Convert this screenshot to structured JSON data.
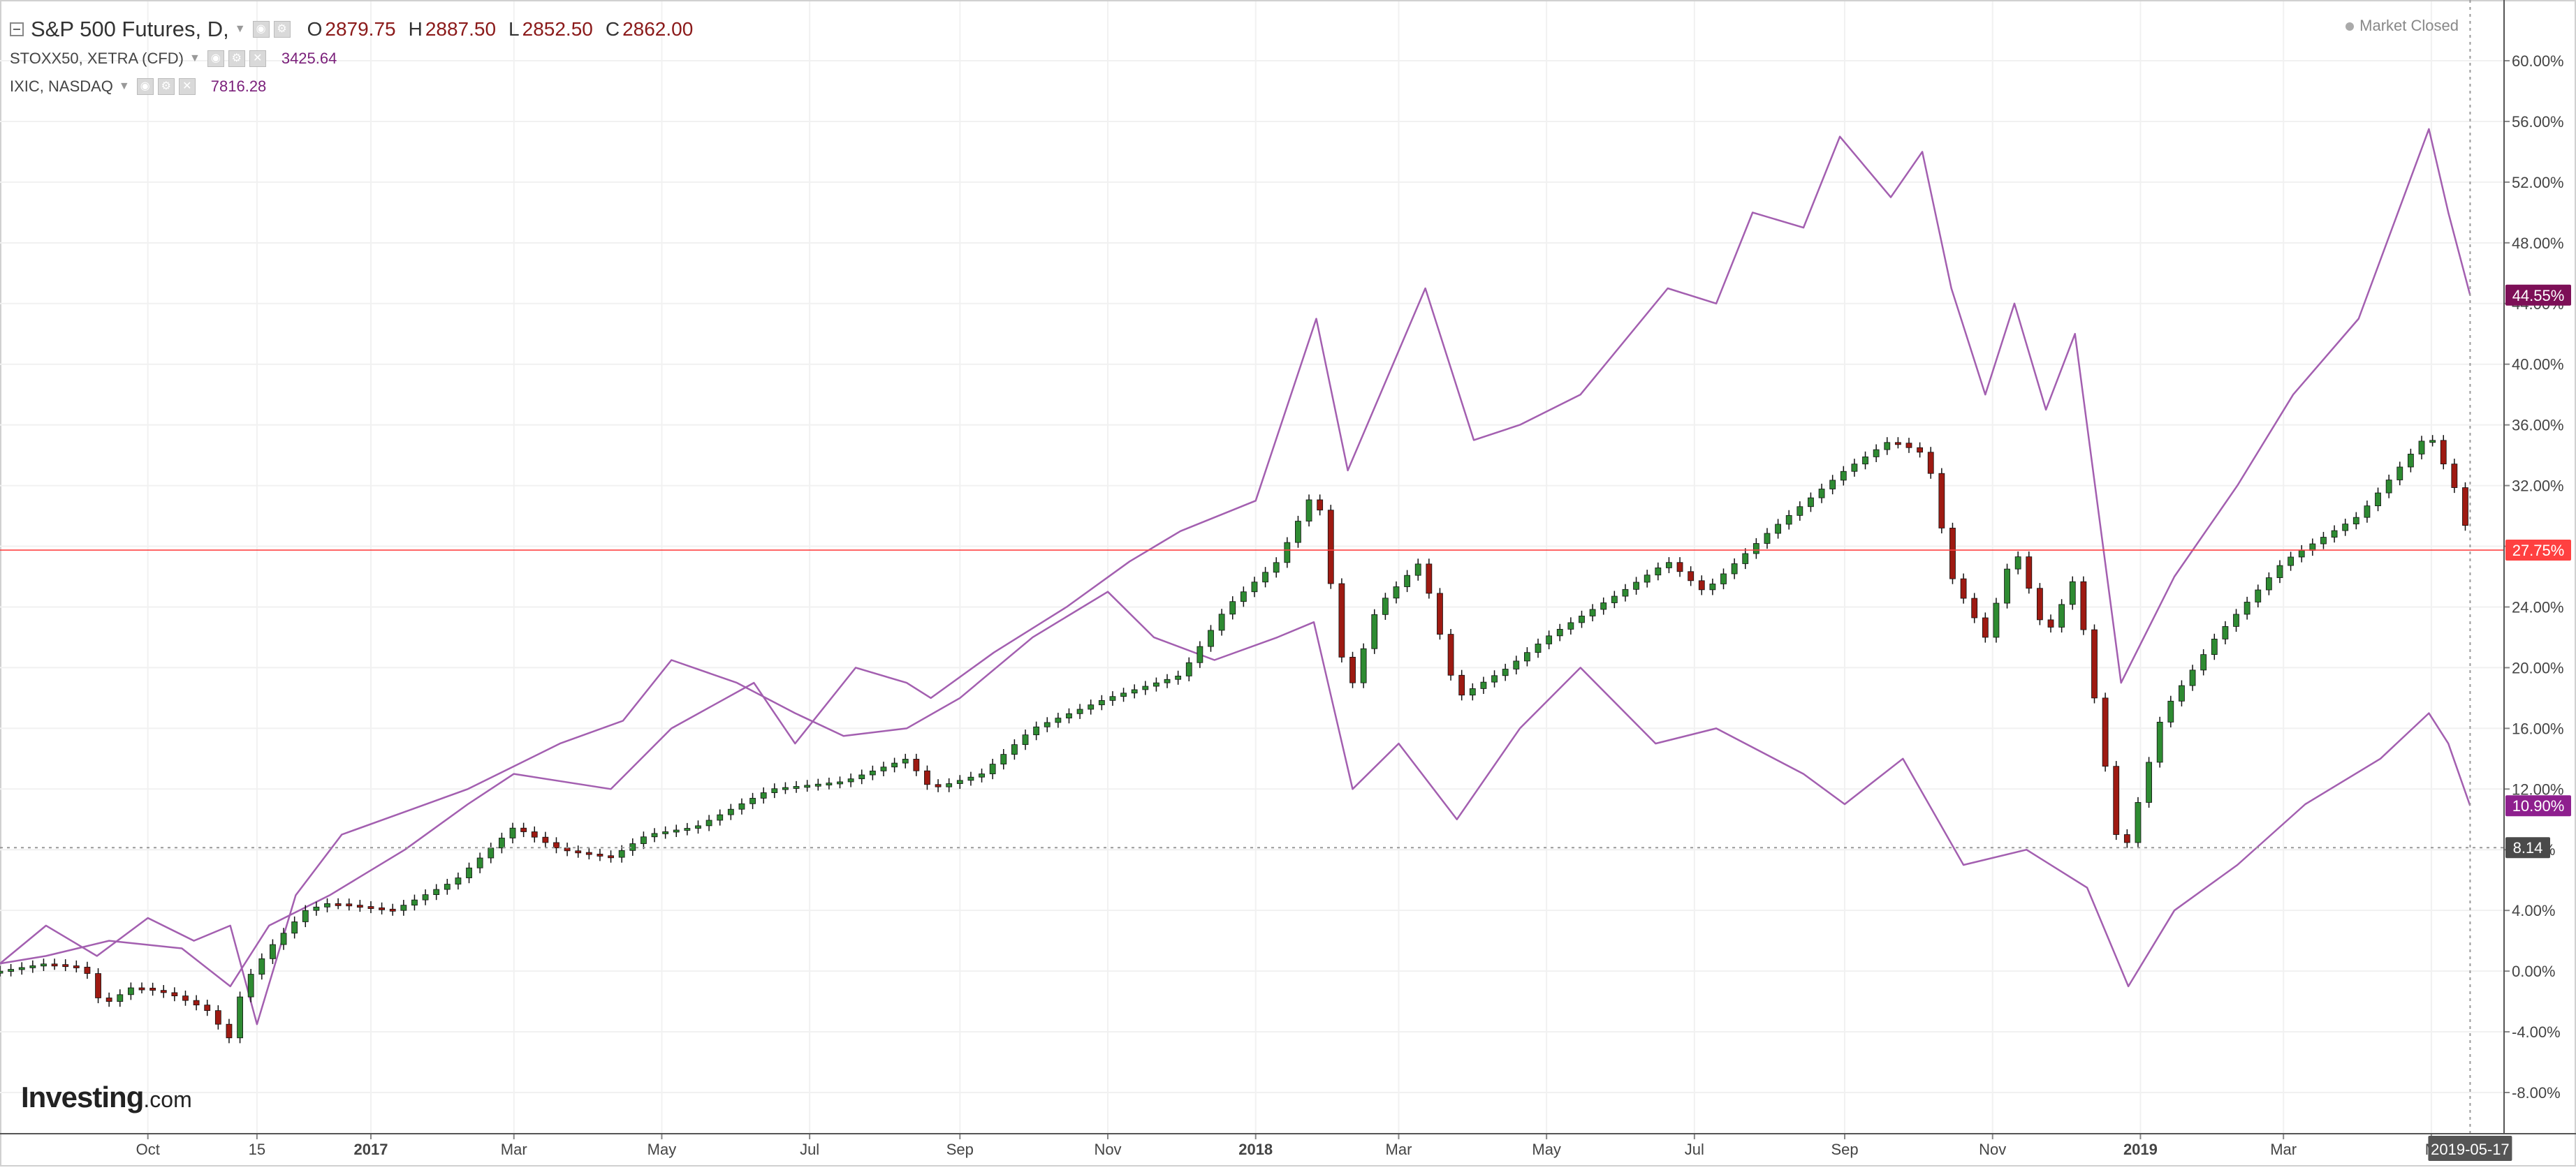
{
  "legend": {
    "main_title": "S&P 500 Futures, D,",
    "ohlc": {
      "o_label": "O",
      "o_value": "2879.75",
      "h_label": "H",
      "h_value": "2887.50",
      "l_label": "L",
      "l_value": "2852.50",
      "c_label": "C",
      "c_value": "2862.00"
    },
    "compare1_name": "STOXX50, XETRA (CFD)",
    "compare1_value": "3425.64",
    "compare2_name": "IXIC, NASDAQ",
    "compare2_value": "7816.28"
  },
  "status_text": "Market Closed",
  "logo_text": "Investing",
  "logo_suffix": ".com",
  "colors": {
    "up_candle": "#2e8b32",
    "down_candle": "#9e1a12",
    "compare_line": "#a35fb0",
    "price_line": "#ff4040",
    "nasdaq_badge": "#7d0f57",
    "stoxx_badge": "#8e1f8e",
    "crosshair_badge": "#4a4a4a",
    "date_badge": "#555555"
  },
  "icons": [
    "collapse-icon",
    "eye-icon",
    "gear-icon",
    "close-icon",
    "dropdown-caret-icon"
  ],
  "chart_data": {
    "type": "line",
    "ylabel_unit": "%",
    "y_range": [
      -10,
      62
    ],
    "y_ticks": [
      "60.00%",
      "56.00%",
      "52.00%",
      "48.00%",
      "44.00%",
      "40.00%",
      "36.00%",
      "32.00%",
      "28.00%",
      "24.00%",
      "20.00%",
      "16.00%",
      "12.00%",
      "8.00%",
      "4.00%",
      "0.00%",
      "-4.00%",
      "-8.00%"
    ],
    "x_tick_labels": [
      {
        "label": "Oct",
        "date": "2016-10-01"
      },
      {
        "label": "15",
        "date": "2016-11-15"
      },
      {
        "label": "2017",
        "date": "2017-01-01",
        "bold": true
      },
      {
        "label": "Mar",
        "date": "2017-03-01"
      },
      {
        "label": "May",
        "date": "2017-05-01"
      },
      {
        "label": "Jul",
        "date": "2017-07-01"
      },
      {
        "label": "Sep",
        "date": "2017-09-01"
      },
      {
        "label": "Nov",
        "date": "2017-11-01"
      },
      {
        "label": "2018",
        "date": "2018-01-01",
        "bold": true
      },
      {
        "label": "Mar",
        "date": "2018-03-01"
      },
      {
        "label": "May",
        "date": "2018-05-01"
      },
      {
        "label": "Jul",
        "date": "2018-07-01"
      },
      {
        "label": "Sep",
        "date": "2018-09-01"
      },
      {
        "label": "Nov",
        "date": "2018-11-01"
      },
      {
        "label": "2019",
        "date": "2019-01-01",
        "bold": true
      },
      {
        "label": "Mar",
        "date": "2019-03-01"
      },
      {
        "label": "M",
        "date": "2019-05-01"
      }
    ],
    "x_range": [
      "2016-08-01",
      "2019-05-31"
    ],
    "current_date_label": "2019-05-17",
    "current_date": "2019-05-17",
    "price_line_value": 27.75,
    "badges": [
      {
        "text": "44.55%",
        "value": 44.55,
        "series": "IXIC, NASDAQ"
      },
      {
        "text": "27.75%",
        "value": 27.75,
        "series": "S&P 500 Futures, D,"
      },
      {
        "text": "10.90%",
        "value": 10.9,
        "series": "STOXX50, XETRA (CFD)"
      },
      {
        "text": "8.14",
        "value": 8.14,
        "series": "crosshair"
      }
    ],
    "series": [
      {
        "name": "S&P 500 Futures, D,",
        "style": "candles",
        "points": [
          [
            "2016-08-01",
            0.0
          ],
          [
            "2016-08-20",
            0.5
          ],
          [
            "2016-09-05",
            0.2
          ],
          [
            "2016-09-12",
            -2.3
          ],
          [
            "2016-09-25",
            -1.0
          ],
          [
            "2016-10-10",
            -1.5
          ],
          [
            "2016-10-25",
            -2.5
          ],
          [
            "2016-11-04",
            -4.5
          ],
          [
            "2016-11-09",
            -1.0
          ],
          [
            "2016-11-20",
            1.5
          ],
          [
            "2016-12-05",
            4.0
          ],
          [
            "2016-12-15",
            4.5
          ],
          [
            "2017-01-10",
            4.0
          ],
          [
            "2017-02-05",
            6.0
          ],
          [
            "2017-03-01",
            9.5
          ],
          [
            "2017-03-20",
            8.0
          ],
          [
            "2017-04-10",
            7.5
          ],
          [
            "2017-04-25",
            9.0
          ],
          [
            "2017-05-15",
            9.5
          ],
          [
            "2017-06-15",
            12.0
          ],
          [
            "2017-07-15",
            12.5
          ],
          [
            "2017-08-10",
            14.0
          ],
          [
            "2017-08-20",
            12.0
          ],
          [
            "2017-09-10",
            13.0
          ],
          [
            "2017-10-01",
            16.0
          ],
          [
            "2017-11-01",
            18.0
          ],
          [
            "2017-12-01",
            19.5
          ],
          [
            "2017-12-20",
            24.0
          ],
          [
            "2018-01-10",
            27.0
          ],
          [
            "2018-01-26",
            32.0
          ],
          [
            "2018-02-08",
            18.0
          ],
          [
            "2018-02-20",
            24.0
          ],
          [
            "2018-03-10",
            27.0
          ],
          [
            "2018-03-25",
            18.0
          ],
          [
            "2018-04-15",
            20.0
          ],
          [
            "2018-05-01",
            22.0
          ],
          [
            "2018-06-01",
            25.0
          ],
          [
            "2018-06-20",
            27.0
          ],
          [
            "2018-07-05",
            25.0
          ],
          [
            "2018-08-01",
            29.0
          ],
          [
            "2018-09-01",
            33.0
          ],
          [
            "2018-09-20",
            35.0
          ],
          [
            "2018-10-05",
            34.0
          ],
          [
            "2018-10-15",
            26.0
          ],
          [
            "2018-10-29",
            22.0
          ],
          [
            "2018-11-10",
            28.0
          ],
          [
            "2018-11-23",
            22.0
          ],
          [
            "2018-12-05",
            26.0
          ],
          [
            "2018-12-24",
            7.0
          ],
          [
            "2019-01-10",
            17.0
          ],
          [
            "2019-02-01",
            22.0
          ],
          [
            "2019-03-01",
            27.0
          ],
          [
            "2019-04-01",
            30.0
          ],
          [
            "2019-04-30",
            35.5
          ],
          [
            "2019-05-13",
            31.0
          ],
          [
            "2019-05-17",
            27.75
          ]
        ]
      },
      {
        "name": "STOXX50, XETRA (CFD)",
        "style": "line",
        "points": [
          [
            "2016-08-01",
            0.5
          ],
          [
            "2016-08-20",
            3.0
          ],
          [
            "2016-09-10",
            1.0
          ],
          [
            "2016-10-01",
            3.5
          ],
          [
            "2016-10-20",
            2.0
          ],
          [
            "2016-11-04",
            3.0
          ],
          [
            "2016-11-15",
            -3.5
          ],
          [
            "2016-12-01",
            5.0
          ],
          [
            "2016-12-20",
            9.0
          ],
          [
            "2017-01-15",
            10.5
          ],
          [
            "2017-02-10",
            12.0
          ],
          [
            "2017-03-01",
            13.5
          ],
          [
            "2017-03-20",
            15.0
          ],
          [
            "2017-04-15",
            16.5
          ],
          [
            "2017-05-05",
            20.5
          ],
          [
            "2017-06-01",
            19.0
          ],
          [
            "2017-06-25",
            17.0
          ],
          [
            "2017-07-15",
            15.5
          ],
          [
            "2017-08-10",
            16.0
          ],
          [
            "2017-09-01",
            18.0
          ],
          [
            "2017-10-01",
            22.0
          ],
          [
            "2017-11-01",
            25.0
          ],
          [
            "2017-11-20",
            22.0
          ],
          [
            "2017-12-15",
            20.5
          ],
          [
            "2018-01-10",
            22.0
          ],
          [
            "2018-01-25",
            23.0
          ],
          [
            "2018-02-10",
            12.0
          ],
          [
            "2018-03-01",
            15.0
          ],
          [
            "2018-03-25",
            10.0
          ],
          [
            "2018-04-20",
            16.0
          ],
          [
            "2018-05-15",
            20.0
          ],
          [
            "2018-06-15",
            15.0
          ],
          [
            "2018-07-10",
            16.0
          ],
          [
            "2018-08-15",
            13.0
          ],
          [
            "2018-09-01",
            11.0
          ],
          [
            "2018-09-25",
            14.0
          ],
          [
            "2018-10-20",
            7.0
          ],
          [
            "2018-11-15",
            8.0
          ],
          [
            "2018-12-10",
            5.5
          ],
          [
            "2018-12-27",
            -1.0
          ],
          [
            "2019-01-15",
            4.0
          ],
          [
            "2019-02-10",
            7.0
          ],
          [
            "2019-03-10",
            11.0
          ],
          [
            "2019-04-10",
            14.0
          ],
          [
            "2019-04-30",
            17.0
          ],
          [
            "2019-05-08",
            15.0
          ],
          [
            "2019-05-17",
            10.9
          ]
        ]
      },
      {
        "name": "IXIC, NASDAQ",
        "style": "line",
        "points": [
          [
            "2016-08-01",
            0.5
          ],
          [
            "2016-08-20",
            1.0
          ],
          [
            "2016-09-15",
            2.0
          ],
          [
            "2016-10-15",
            1.5
          ],
          [
            "2016-11-04",
            -1.0
          ],
          [
            "2016-11-20",
            3.0
          ],
          [
            "2016-12-15",
            5.0
          ],
          [
            "2017-01-15",
            8.0
          ],
          [
            "2017-02-10",
            11.0
          ],
          [
            "2017-03-01",
            13.0
          ],
          [
            "2017-04-10",
            12.0
          ],
          [
            "2017-05-05",
            16.0
          ],
          [
            "2017-06-08",
            19.0
          ],
          [
            "2017-06-25",
            15.0
          ],
          [
            "2017-07-20",
            20.0
          ],
          [
            "2017-08-10",
            19.0
          ],
          [
            "2017-08-20",
            18.0
          ],
          [
            "2017-09-15",
            21.0
          ],
          [
            "2017-10-15",
            24.0
          ],
          [
            "2017-11-10",
            27.0
          ],
          [
            "2017-12-01",
            29.0
          ],
          [
            "2018-01-01",
            31.0
          ],
          [
            "2018-01-26",
            43.0
          ],
          [
            "2018-02-08",
            33.0
          ],
          [
            "2018-03-12",
            45.0
          ],
          [
            "2018-04-01",
            35.0
          ],
          [
            "2018-04-20",
            36.0
          ],
          [
            "2018-05-15",
            38.0
          ],
          [
            "2018-06-20",
            45.0
          ],
          [
            "2018-07-10",
            44.0
          ],
          [
            "2018-07-25",
            50.0
          ],
          [
            "2018-08-15",
            49.0
          ],
          [
            "2018-08-30",
            55.0
          ],
          [
            "2018-09-20",
            51.0
          ],
          [
            "2018-10-03",
            54.0
          ],
          [
            "2018-10-15",
            45.0
          ],
          [
            "2018-10-29",
            38.0
          ],
          [
            "2018-11-10",
            44.0
          ],
          [
            "2018-11-23",
            37.0
          ],
          [
            "2018-12-05",
            42.0
          ],
          [
            "2018-12-24",
            19.0
          ],
          [
            "2019-01-15",
            26.0
          ],
          [
            "2019-02-10",
            32.0
          ],
          [
            "2019-03-05",
            38.0
          ],
          [
            "2019-04-01",
            43.0
          ],
          [
            "2019-04-30",
            55.5
          ],
          [
            "2019-05-08",
            50.0
          ],
          [
            "2019-05-17",
            44.55
          ]
        ]
      }
    ]
  }
}
